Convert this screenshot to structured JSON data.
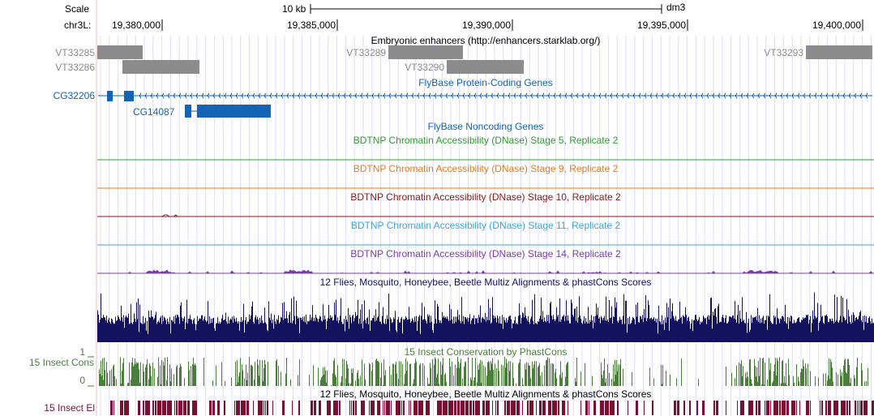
{
  "ruler": {
    "scale_label": "Scale",
    "scale_bar_label": "10 kb",
    "assembly": "dm3",
    "chrom_label": "chr3L:",
    "positions": [
      "19,380,000",
      "19,385,000",
      "19,390,000",
      "19,395,000",
      "19,400,000"
    ]
  },
  "tracks": {
    "enhancers": {
      "title": "Embryonic enhancers (http://enhancers.starklab.org/)",
      "items": [
        "VT33285",
        "VT33286",
        "VT33289",
        "VT33290",
        "VT33293"
      ]
    },
    "flybase_coding": {
      "title": "FlyBase Protein-Coding Genes",
      "genes": [
        "CG32206",
        "CG14087"
      ]
    },
    "flybase_noncoding": {
      "title": "FlyBase Noncoding Genes"
    },
    "dnase": [
      {
        "title": "BDTNP Chromatin Accessibility (DNase) Stage 5, Replicate 2",
        "color": "#2ca02c"
      },
      {
        "title": "BDTNP Chromatin Accessibility (DNase) Stage 9, Replicate 2",
        "color": "#e07b24"
      },
      {
        "title": "BDTNP Chromatin Accessibility (DNase) Stage 10, Replicate 2",
        "color": "#8b1a1a"
      },
      {
        "title": "BDTNP Chromatin Accessibility (DNase) Stage 11, Replicate 2",
        "color": "#3fa4d8"
      },
      {
        "title": "BDTNP Chromatin Accessibility (DNase) Stage 14, Replicate 2",
        "color": "#7d3ca8"
      }
    ],
    "multiz": {
      "title": "12 Flies, Mosquito, Honeybee, Beetle Multiz Alignments & phastCons Scores",
      "color": "#12125e"
    },
    "insect_cons": {
      "title": "15 Insect Conservation by PhastCons",
      "side_label": "15 Insect Cons",
      "axis_max": "1",
      "axis_min": "0",
      "color": "#4a7f3a"
    },
    "insect_el": {
      "title": "12 Flies, Mosquito, Honeybee, Beetle Multiz Alignments & phastCons Scores",
      "side_label": "15 Insect El",
      "color": "#7a1030"
    }
  },
  "colors": {
    "gene_blue": "#1463b4",
    "enhancer_gray": "#8c8c8c",
    "grid_blue": "#dcdcf8",
    "left_margin_red": "#f4b8b8"
  }
}
